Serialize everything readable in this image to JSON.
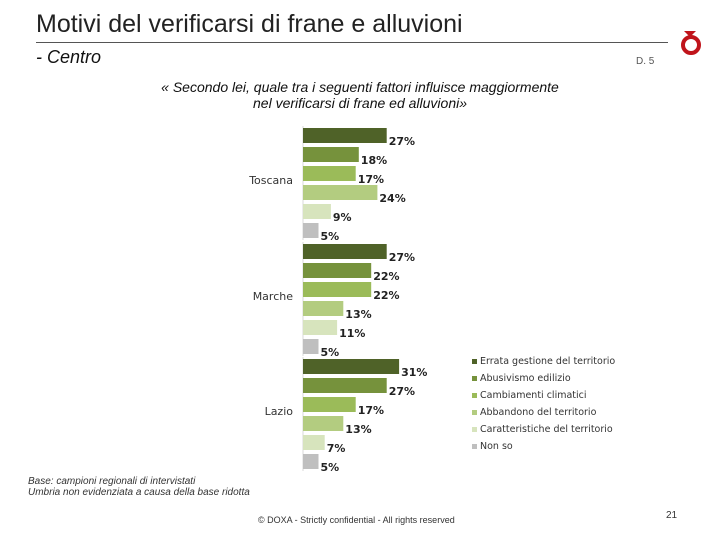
{
  "header": {
    "title": "Motivi del verificarsi di frane e alluvioni",
    "subtitle": "- Centro",
    "question_code": "D. 5"
  },
  "question": "« Secondo lei, quale tra i seguenti fattori influisce maggiormente nel verificarsi di frane ed alluvioni»",
  "footnote": {
    "line1": "Base: campioni regionali di intervistati",
    "line2": "Umbria non evidenziata a causa della base ridotta"
  },
  "footer": {
    "copyright": "© DOXA - Strictly confidential - All rights reserved",
    "page_number": "21"
  },
  "chart_data": {
    "type": "bar",
    "orientation": "horizontal",
    "categories": [
      "Toscana",
      "Marche",
      "Lazio"
    ],
    "value_suffix": "%",
    "legend_position": "right",
    "series": [
      {
        "name": "Errata gestione del territorio",
        "color": "#4f6228",
        "values": [
          27,
          27,
          31
        ]
      },
      {
        "name": "Abusivismo edilizio",
        "color": "#76923c",
        "values": [
          18,
          22,
          27
        ]
      },
      {
        "name": "Cambiamenti climatici",
        "color": "#9bbb59",
        "values": [
          17,
          22,
          17
        ]
      },
      {
        "name": "Abbandono del territorio",
        "color": "#b3cc80",
        "values": [
          24,
          13,
          13
        ]
      },
      {
        "name": "Caratteristiche del territorio",
        "color": "#d7e4bd",
        "values": [
          9,
          11,
          7
        ]
      },
      {
        "name": "Non so",
        "color": "#bfbfbf",
        "values": [
          5,
          5,
          5
        ]
      }
    ]
  }
}
